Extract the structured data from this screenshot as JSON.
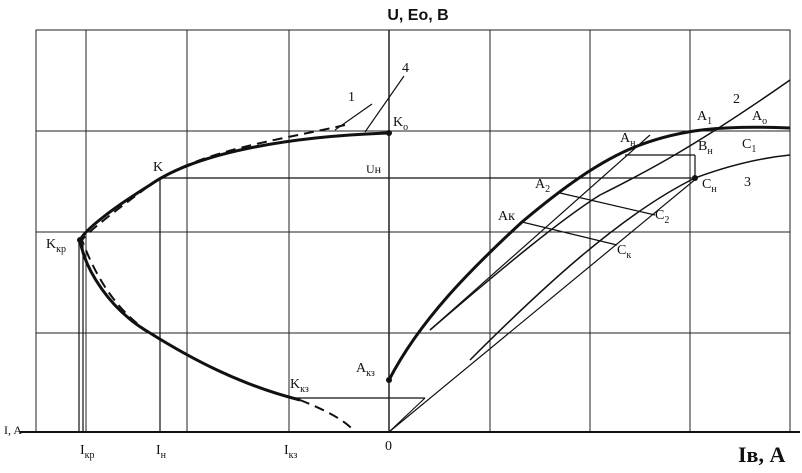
{
  "axes": {
    "y_label": "U, Eo, B",
    "y_unit_label": "I, A",
    "x_label": "Iв, A"
  },
  "x_ticks": [
    {
      "main": "I",
      "sub": "кр"
    },
    {
      "main": "I",
      "sub": "н"
    },
    {
      "main": "I",
      "sub": "кз"
    },
    {
      "main": "0"
    }
  ],
  "points": [
    {
      "main": "1"
    },
    {
      "main": "4"
    },
    {
      "main": "K",
      "sub": "o"
    },
    {
      "main": "K"
    },
    {
      "main": "Uн"
    },
    {
      "main": "K",
      "sub": "кр"
    },
    {
      "main": "K",
      "sub": "кз"
    },
    {
      "main": "A",
      "sub": "кз"
    },
    {
      "main": "A",
      "sub": "1"
    },
    {
      "main": "2"
    },
    {
      "main": "A",
      "sub": "o"
    },
    {
      "main": "A",
      "sub": "н"
    },
    {
      "main": "B",
      "sub": "н"
    },
    {
      "main": "C",
      "sub": "1"
    },
    {
      "main": "C",
      "sub": "н"
    },
    {
      "main": "3"
    },
    {
      "main": "A",
      "sub": "2"
    },
    {
      "main": "Aк"
    },
    {
      "main": "C",
      "sub": "2"
    },
    {
      "main": "C",
      "sub": "к"
    }
  ]
}
